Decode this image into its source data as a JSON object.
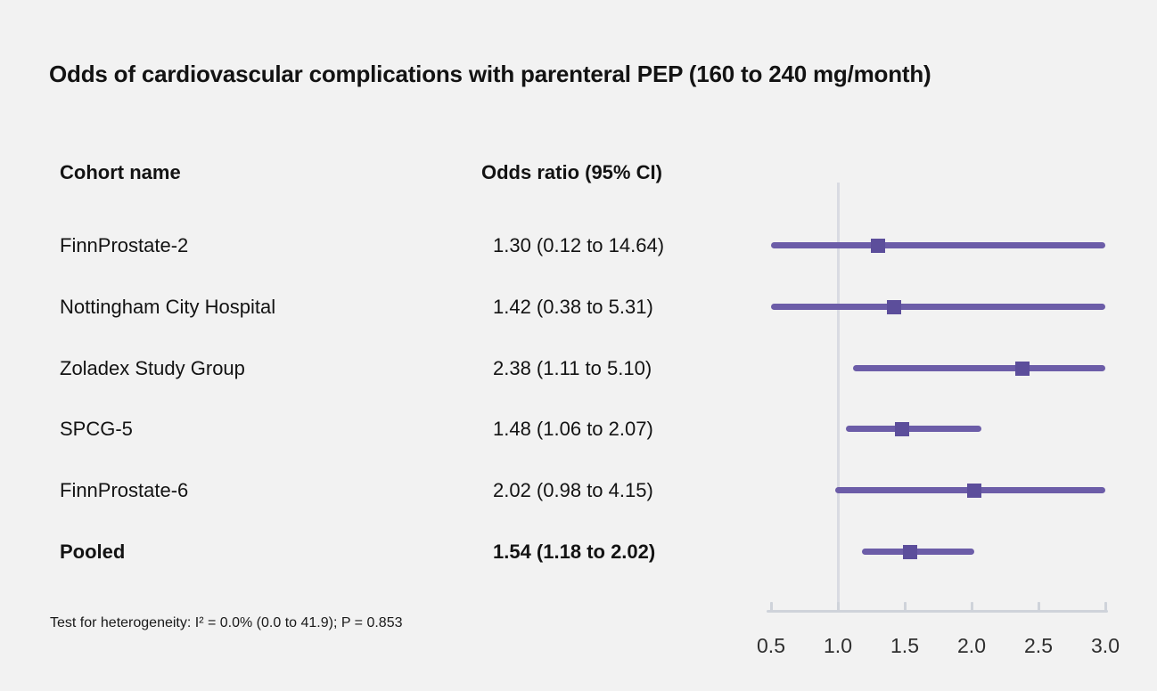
{
  "title": "Odds of cardiovascular complications with parenteral PEP (160 to 240 mg/month)",
  "columns": {
    "cohort": "Cohort name",
    "odds": "Odds ratio (95% CI)"
  },
  "footnote": "Test for heterogeneity: I² = 0.0% (0.0 to 41.9); P = 0.853",
  "colors": {
    "background": "#f2f2f2",
    "text": "#131313",
    "ci_line": "#6c5da8",
    "marker": "#5c4e9b",
    "reference_line": "#d9dbe2",
    "axis": "#cfd3da"
  },
  "chart_data": {
    "type": "scatter",
    "subtype": "forest-plot",
    "title": "Odds of cardiovascular complications with parenteral PEP (160 to 240 mg/month)",
    "xlabel": "",
    "ylabel": "",
    "x_axis": {
      "range": [
        0.5,
        3.0
      ],
      "ticks": [
        0.5,
        1.0,
        1.5,
        2.0,
        2.5,
        3.0
      ],
      "tick_labels": [
        "0.5",
        "1.0",
        "1.5",
        "2.0",
        "2.5",
        "3.0"
      ],
      "reference_line": 1.0,
      "clip_to_range": true,
      "grid": false
    },
    "legend": null,
    "rows": [
      {
        "label": "FinnProstate-2",
        "display": "1.30 (0.12 to 14.64)",
        "or": 1.3,
        "ci_low": 0.12,
        "ci_high": 14.64,
        "pooled": false
      },
      {
        "label": "Nottingham City Hospital",
        "display": "1.42 (0.38 to 5.31)",
        "or": 1.42,
        "ci_low": 0.38,
        "ci_high": 5.31,
        "pooled": false
      },
      {
        "label": "Zoladex Study Group",
        "display": "2.38 (1.11 to 5.10)",
        "or": 2.38,
        "ci_low": 1.11,
        "ci_high": 5.1,
        "pooled": false
      },
      {
        "label": "SPCG-5",
        "display": "1.48 (1.06 to 2.07)",
        "or": 1.48,
        "ci_low": 1.06,
        "ci_high": 2.07,
        "pooled": false
      },
      {
        "label": "FinnProstate-6",
        "display": "2.02 (0.98 to 4.15)",
        "or": 2.02,
        "ci_low": 0.98,
        "ci_high": 4.15,
        "pooled": false
      },
      {
        "label": "Pooled",
        "display": "1.54 (1.18 to 2.02)",
        "or": 1.54,
        "ci_low": 1.18,
        "ci_high": 2.02,
        "pooled": true
      }
    ]
  }
}
